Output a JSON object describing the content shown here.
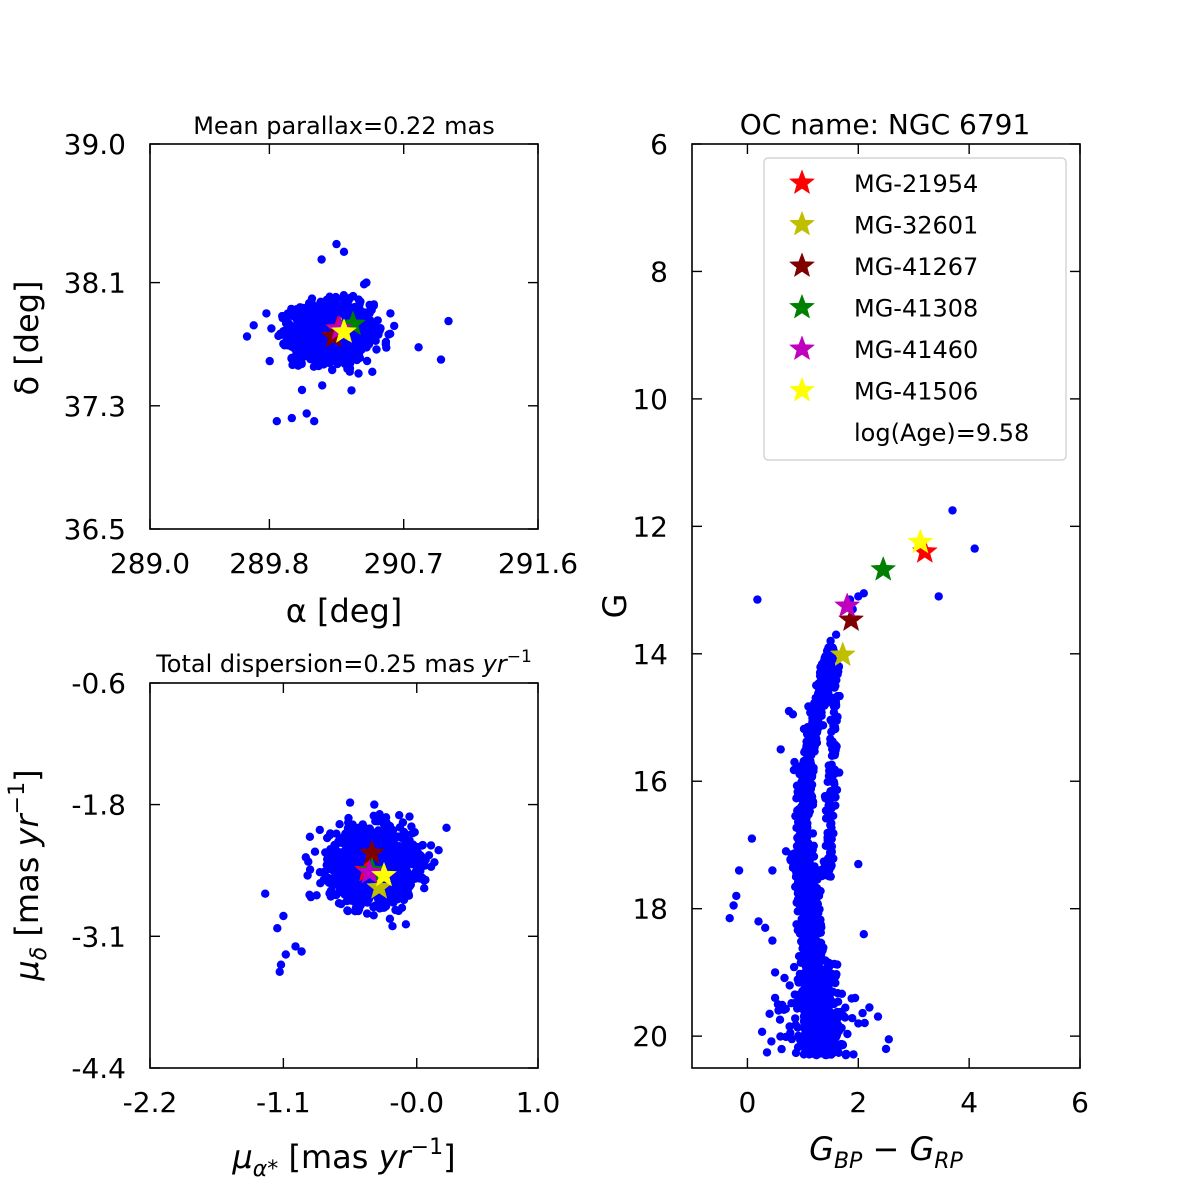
{
  "chart_data": [
    {
      "id": "sky",
      "type": "scatter",
      "title": "Mean parallax=0.22 mas",
      "xlabel": "α [deg]",
      "ylabel": "δ [deg]",
      "xlim": [
        289.0,
        291.6
      ],
      "ylim": [
        36.5,
        39.0
      ],
      "xticks": [
        "289.0",
        "289.8",
        "290.7",
        "291.6"
      ],
      "yticks": [
        "36.5",
        "37.3",
        "38.1",
        "39.0"
      ],
      "cluster": {
        "center": [
          290.22,
          37.78
        ],
        "sd": [
          0.13,
          0.09
        ],
        "n": 1500,
        "color": "#0000ff"
      },
      "outliers": [
        [
          290.5,
          37.95
        ],
        [
          289.78,
          37.9
        ],
        [
          289.65,
          37.75
        ],
        [
          290.05,
          37.25
        ],
        [
          290.1,
          37.2
        ],
        [
          289.95,
          37.22
        ],
        [
          290.35,
          37.4
        ],
        [
          290.58,
          37.7
        ],
        [
          290.8,
          37.68
        ],
        [
          290.95,
          37.6
        ],
        [
          291.0,
          37.85
        ],
        [
          290.45,
          38.1
        ],
        [
          290.15,
          38.25
        ],
        [
          290.25,
          38.35
        ],
        [
          289.85,
          37.2
        ],
        [
          290.3,
          38.3
        ]
      ],
      "stars": [
        {
          "id": "MG-21954",
          "x": 290.26,
          "y": 37.8,
          "color": "#ff0000"
        },
        {
          "id": "MG-32601",
          "x": 290.28,
          "y": 37.79,
          "color": "#bfbf00"
        },
        {
          "id": "MG-41267",
          "x": 290.23,
          "y": 37.75,
          "color": "#800000"
        },
        {
          "id": "MG-41308",
          "x": 290.36,
          "y": 37.83,
          "color": "#008000"
        },
        {
          "id": "MG-41460",
          "x": 290.27,
          "y": 37.8,
          "color": "#bf00bf"
        },
        {
          "id": "MG-41506",
          "x": 290.3,
          "y": 37.78,
          "color": "#ffff00"
        }
      ]
    },
    {
      "id": "pm",
      "type": "scatter",
      "title": "Total dispersion=0.25 mas yr−1",
      "xlabel": "μα* [mas yr−1]",
      "ylabel": "μδ [mas yr−1]",
      "xlim": [
        -2.2,
        1.0
      ],
      "ylim": [
        -4.4,
        -0.6
      ],
      "xticks": [
        "-2.2",
        "-1.1",
        "-0.0",
        "1.0"
      ],
      "yticks": [
        "-4.4",
        "-3.1",
        "-1.8",
        "-0.6"
      ],
      "cluster": {
        "center": [
          -0.37,
          -2.4
        ],
        "sd": [
          0.17,
          0.17
        ],
        "n": 1500,
        "color": "#0000ff"
      },
      "outliers": [
        [
          -1.25,
          -2.68
        ],
        [
          -1.12,
          -3.38
        ],
        [
          -1.13,
          -3.45
        ],
        [
          -1.08,
          -3.28
        ],
        [
          -0.95,
          -3.25
        ],
        [
          -1.15,
          -3.02
        ],
        [
          -1.0,
          -3.2
        ],
        [
          -1.1,
          -2.9
        ],
        [
          0.05,
          -2.2
        ],
        [
          0.18,
          -2.25
        ],
        [
          -0.55,
          -1.78
        ],
        [
          -0.35,
          -1.8
        ],
        [
          -0.8,
          -2.05
        ],
        [
          -0.9,
          -2.5
        ],
        [
          -0.2,
          -3.0
        ]
      ],
      "stars": [
        {
          "id": "MG-21954",
          "x": -0.41,
          "y": -2.45,
          "color": "#ff0000"
        },
        {
          "id": "MG-32601",
          "x": -0.31,
          "y": -2.62,
          "color": "#bfbf00"
        },
        {
          "id": "MG-41267",
          "x": -0.37,
          "y": -2.28,
          "color": "#800000"
        },
        {
          "id": "MG-41308",
          "x": -0.37,
          "y": -2.45,
          "color": "#008000"
        },
        {
          "id": "MG-41460",
          "x": -0.39,
          "y": -2.47,
          "color": "#bf00bf"
        },
        {
          "id": "MG-41506",
          "x": -0.27,
          "y": -2.5,
          "color": "#ffff00"
        }
      ]
    },
    {
      "id": "cmd",
      "type": "scatter",
      "title": "OC name: NGC 6791",
      "xlabel": "GBP − GRP",
      "ylabel": "G",
      "xlim": [
        -1,
        6
      ],
      "ylim": [
        20.5,
        6
      ],
      "xticks": [
        "0",
        "2",
        "4",
        "6"
      ],
      "yticks": [
        "6",
        "8",
        "10",
        "12",
        "14",
        "16",
        "18",
        "20"
      ],
      "mainseq": {
        "n": 1300,
        "color": "#0000ff"
      },
      "extra_points": [
        [
          3.7,
          11.75
        ],
        [
          4.1,
          12.35
        ],
        [
          3.45,
          13.1
        ],
        [
          2.0,
          13.1
        ],
        [
          1.85,
          13.15
        ],
        [
          1.9,
          13.3
        ],
        [
          2.1,
          13.05
        ],
        [
          0.18,
          13.15
        ],
        [
          1.5,
          13.8
        ],
        [
          1.6,
          13.7
        ],
        [
          1.65,
          14.2
        ],
        [
          1.45,
          14.6
        ],
        [
          0.75,
          14.9
        ],
        [
          0.82,
          14.95
        ],
        [
          0.6,
          15.5
        ],
        [
          0.85,
          15.7
        ],
        [
          0.45,
          17.4
        ],
        [
          0.08,
          16.9
        ],
        [
          -0.15,
          17.4
        ],
        [
          -0.25,
          17.95
        ],
        [
          -0.2,
          17.8
        ],
        [
          -0.32,
          18.15
        ],
        [
          0.2,
          18.2
        ],
        [
          0.32,
          18.3
        ],
        [
          0.45,
          18.5
        ],
        [
          0.4,
          19.65
        ],
        [
          0.5,
          19.4
        ],
        [
          0.5,
          19.0
        ],
        [
          2.2,
          19.55
        ],
        [
          2.5,
          20.2
        ],
        [
          2.55,
          20.05
        ],
        [
          2.0,
          17.3
        ],
        [
          2.1,
          18.4
        ],
        [
          2.0,
          19.8
        ],
        [
          0.55,
          19.5
        ]
      ],
      "stars": [
        {
          "id": "MG-21954",
          "x": 3.2,
          "y": 12.4,
          "color": "#ff0000"
        },
        {
          "id": "MG-32601",
          "x": 1.72,
          "y": 14.02,
          "color": "#bfbf00"
        },
        {
          "id": "MG-41267",
          "x": 1.87,
          "y": 13.47,
          "color": "#800000"
        },
        {
          "id": "MG-41308",
          "x": 2.45,
          "y": 12.68,
          "color": "#008000"
        },
        {
          "id": "MG-41460",
          "x": 1.8,
          "y": 13.25,
          "color": "#bf00bf"
        },
        {
          "id": "MG-41506",
          "x": 3.12,
          "y": 12.25,
          "color": "#ffff00"
        }
      ],
      "legend": {
        "position": "top-right",
        "entries": [
          {
            "label": "MG-21954",
            "color": "#ff0000"
          },
          {
            "label": "MG-32601",
            "color": "#bfbf00"
          },
          {
            "label": "MG-41267",
            "color": "#800000"
          },
          {
            "label": "MG-41308",
            "color": "#008000"
          },
          {
            "label": "MG-41460",
            "color": "#bf00bf"
          },
          {
            "label": "MG-41506",
            "color": "#ffff00"
          }
        ],
        "note": "log(Age)=9.58"
      }
    }
  ]
}
